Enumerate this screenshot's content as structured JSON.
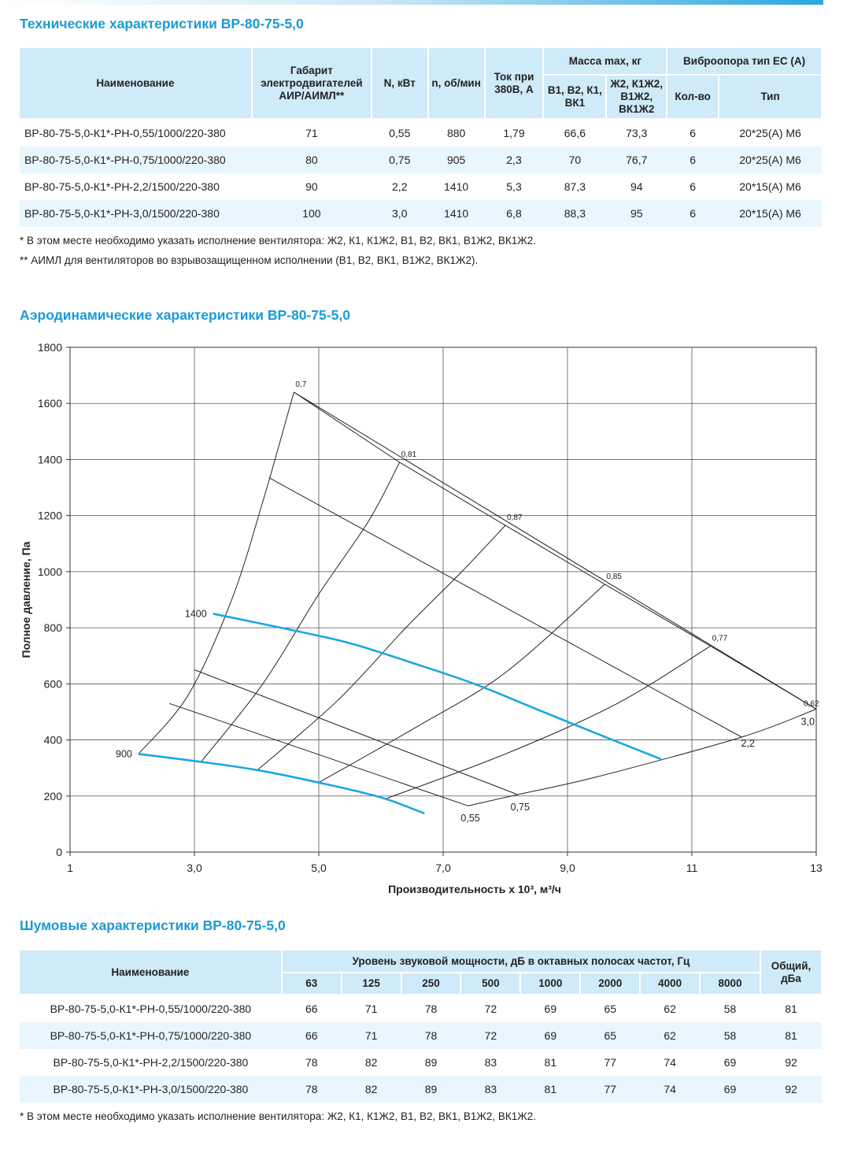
{
  "tech": {
    "title": "Технические характеристики ВР-80-75-5,0",
    "headers": {
      "name": "Наименование",
      "motor": "Габарит электродвигателей АИР/АИМЛ**",
      "power": "N, кВт",
      "rpm": "n, об/мин",
      "current": "Ток при 380В, А",
      "mass": "Масса max, кг",
      "mass_a": "В1, В2, К1, ВК1",
      "mass_b": "Ж2, К1Ж2, В1Ж2, ВК1Ж2",
      "vibro": "Виброопора тип ЕС (А)",
      "vibro_qty": "Кол-во",
      "vibro_type": "Тип"
    },
    "rows": [
      {
        "name": "ВР-80-75-5,0-К1*-РН-0,55/1000/220-380",
        "motor": "71",
        "power": "0,55",
        "rpm": "880",
        "current": "1,79",
        "mass_a": "66,6",
        "mass_b": "73,3",
        "qty": "6",
        "type": "20*25(А) М6"
      },
      {
        "name": "ВР-80-75-5,0-К1*-РН-0,75/1000/220-380",
        "motor": "80",
        "power": "0,75",
        "rpm": "905",
        "current": "2,3",
        "mass_a": "70",
        "mass_b": "76,7",
        "qty": "6",
        "type": "20*25(А) М6"
      },
      {
        "name": "ВР-80-75-5,0-К1*-РН-2,2/1500/220-380",
        "motor": "90",
        "power": "2,2",
        "rpm": "1410",
        "current": "5,3",
        "mass_a": "87,3",
        "mass_b": "94",
        "qty": "6",
        "type": "20*15(А) М6"
      },
      {
        "name": "ВР-80-75-5,0-К1*-РН-3,0/1500/220-380",
        "motor": "100",
        "power": "3,0",
        "rpm": "1410",
        "current": "6,8",
        "mass_a": "88,3",
        "mass_b": "95",
        "qty": "6",
        "type": "20*15(А) М6"
      }
    ],
    "note1": "* В этом месте необходимо указать исполнение вентилятора: Ж2, К1, К1Ж2, В1, В2, ВК1, В1Ж2, ВК1Ж2.",
    "note2": "** АИМЛ для вентиляторов во взрывозащищенном исполнении (В1, В2, ВК1, В1Ж2, ВК1Ж2)."
  },
  "aero": {
    "title": "Аэродинамические характеристики ВР-80-75-5,0"
  },
  "chart_data": {
    "type": "line",
    "xlabel": "Производительность х 10³, м³/ч",
    "ylabel": "Полное давление, Па",
    "xlim": [
      1,
      13
    ],
    "ylim": [
      0,
      1800
    ],
    "x_ticks": [
      {
        "value": 1,
        "label": "1"
      },
      {
        "value": 3,
        "label": "3,0"
      },
      {
        "value": 5,
        "label": "5,0"
      },
      {
        "value": 7,
        "label": "7,0"
      },
      {
        "value": 9,
        "label": "9,0"
      },
      {
        "value": 11,
        "label": "11"
      },
      {
        "value": 13,
        "label": "13"
      }
    ],
    "y_ticks": [
      {
        "value": 0,
        "label": "0"
      },
      {
        "value": 200,
        "label": "200"
      },
      {
        "value": 400,
        "label": "400"
      },
      {
        "value": 600,
        "label": "600"
      },
      {
        "value": 800,
        "label": "800"
      },
      {
        "value": 1000,
        "label": "1000"
      },
      {
        "value": 1200,
        "label": "1200"
      },
      {
        "value": 1400,
        "label": "1400"
      },
      {
        "value": 1600,
        "label": "1600"
      },
      {
        "value": 1800,
        "label": "1800"
      }
    ],
    "grid": true,
    "speed_curves": [
      {
        "label": "1400",
        "points": [
          [
            3.3,
            850
          ],
          [
            4.5,
            795
          ],
          [
            5.5,
            745
          ],
          [
            6.5,
            675
          ],
          [
            7.5,
            600
          ],
          [
            8.5,
            510
          ],
          [
            9.5,
            420
          ],
          [
            10.5,
            332
          ]
        ]
      },
      {
        "label": "900",
        "points": [
          [
            2.1,
            350
          ],
          [
            3.0,
            325
          ],
          [
            4.0,
            293
          ],
          [
            5.0,
            248
          ],
          [
            6.0,
            195
          ],
          [
            6.7,
            138
          ]
        ]
      }
    ],
    "efficiency_lines": [
      {
        "label": "0,7",
        "points": [
          [
            2.1,
            350
          ],
          [
            2.9,
            560
          ],
          [
            3.6,
            900
          ],
          [
            4.1,
            1250
          ],
          [
            4.6,
            1640
          ]
        ]
      },
      {
        "label": "0,81",
        "points": [
          [
            3.1,
            320
          ],
          [
            4.1,
            600
          ],
          [
            5.0,
            920
          ],
          [
            5.8,
            1180
          ],
          [
            6.3,
            1390
          ]
        ]
      },
      {
        "label": "0,87",
        "points": [
          [
            4.0,
            290
          ],
          [
            5.3,
            540
          ],
          [
            6.4,
            800
          ],
          [
            7.3,
            1000
          ],
          [
            8.0,
            1165
          ]
        ]
      },
      {
        "label": "0,85",
        "points": [
          [
            5.0,
            248
          ],
          [
            6.6,
            450
          ],
          [
            8.0,
            640
          ],
          [
            9.6,
            955
          ]
        ]
      },
      {
        "label": "0,77",
        "points": [
          [
            6.1,
            192
          ],
          [
            8.0,
            350
          ],
          [
            9.8,
            530
          ],
          [
            11.3,
            735
          ]
        ]
      }
    ],
    "power_lines": [
      {
        "label": "0,55",
        "points": [
          [
            2.6,
            530
          ],
          [
            7.4,
            165
          ]
        ]
      },
      {
        "label": "0,75",
        "points": [
          [
            3.0,
            650
          ],
          [
            8.2,
            205
          ]
        ]
      },
      {
        "label": "2,2",
        "points": [
          [
            4.2,
            1335
          ],
          [
            11.8,
            410
          ]
        ]
      },
      {
        "label": "3,0",
        "points": [
          [
            4.6,
            1640
          ],
          [
            13.0,
            510
          ]
        ]
      }
    ],
    "boundary_lines": [
      {
        "points": [
          [
            7.4,
            165
          ],
          [
            8.2,
            205
          ],
          [
            9.5,
            270
          ],
          [
            11.8,
            410
          ],
          [
            13.0,
            510
          ]
        ]
      }
    ]
  },
  "noise": {
    "title": "Шумовые характеристики ВР-80-75-5,0",
    "headers": {
      "name": "Наименование",
      "level": "Уровень звуковой мощности, дБ в октавных полосах частот, Гц",
      "total": "Общий, дБа",
      "freqs": [
        "63",
        "125",
        "250",
        "500",
        "1000",
        "2000",
        "4000",
        "8000"
      ]
    },
    "rows": [
      {
        "name": "ВР-80-75-5,0-К1*-РН-0,55/1000/220-380",
        "v": [
          "66",
          "71",
          "78",
          "72",
          "69",
          "65",
          "62",
          "58"
        ],
        "total": "81"
      },
      {
        "name": "ВР-80-75-5,0-К1*-РН-0,75/1000/220-380",
        "v": [
          "66",
          "71",
          "78",
          "72",
          "69",
          "65",
          "62",
          "58"
        ],
        "total": "81"
      },
      {
        "name": "ВР-80-75-5,0-К1*-РН-2,2/1500/220-380",
        "v": [
          "78",
          "82",
          "89",
          "83",
          "81",
          "77",
          "74",
          "69"
        ],
        "total": "92"
      },
      {
        "name": "ВР-80-75-5,0-К1*-РН-3,0/1500/220-380",
        "v": [
          "78",
          "82",
          "89",
          "83",
          "81",
          "77",
          "74",
          "69"
        ],
        "total": "92"
      }
    ],
    "note": "* В этом месте необходимо указать исполнение вентилятора: Ж2, К1, К1Ж2, В1, В2, ВК1, В1Ж2, ВК1Ж2."
  }
}
